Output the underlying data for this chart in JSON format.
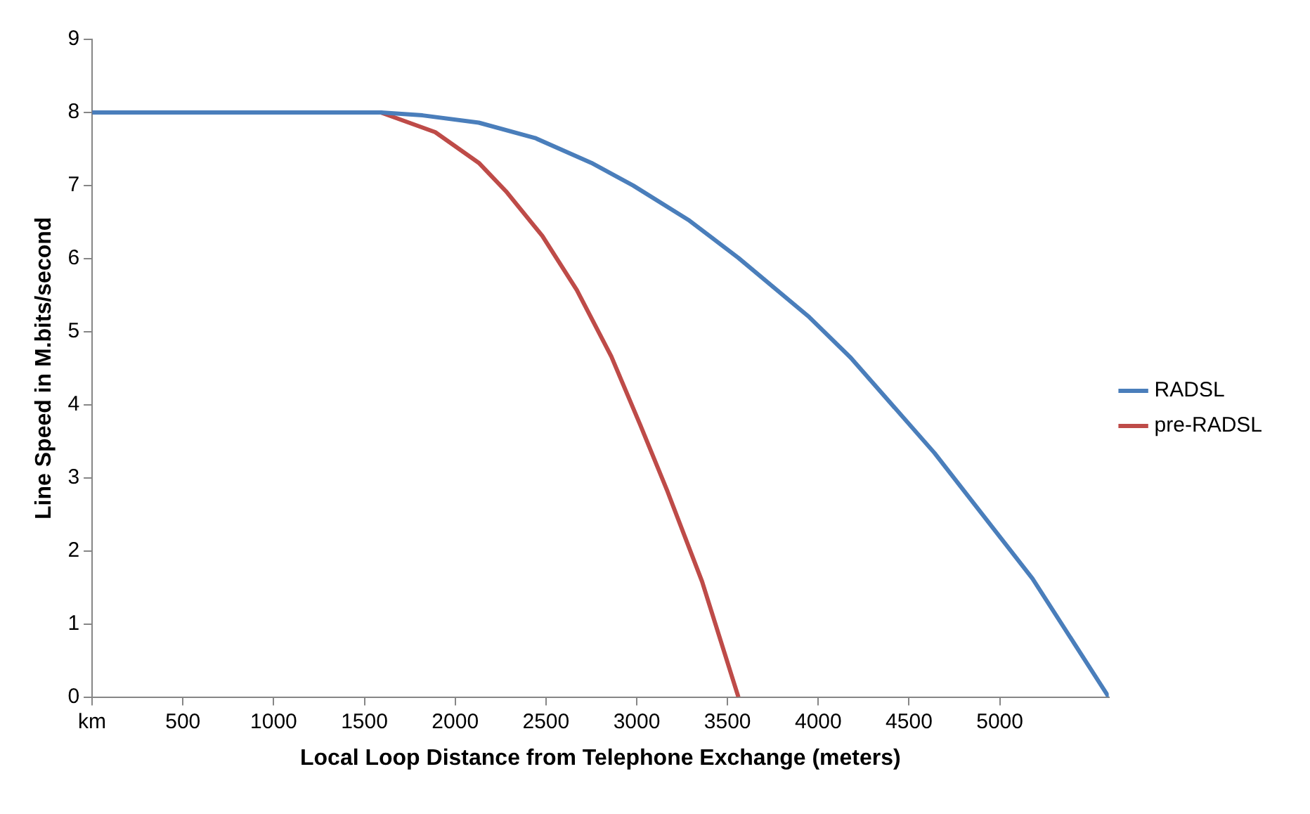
{
  "chart_data": {
    "type": "line",
    "xlabel": "Local Loop Distance from Telephone Exchange (meters)",
    "ylabel": "Line Speed in M.bits/second",
    "xlim": [
      0,
      5600
    ],
    "xticks": [
      {
        "value": 0,
        "label": "km"
      },
      500,
      1000,
      1500,
      2000,
      2500,
      3000,
      3500,
      4000,
      4500,
      5000
    ],
    "ylim": [
      0,
      9
    ],
    "yticks": [
      0,
      1,
      2,
      3,
      4,
      5,
      6,
      7,
      8,
      9
    ],
    "grid": false,
    "legend": "right",
    "marker": "none",
    "line_style": "solid",
    "series": [
      {
        "name": "RADSL",
        "color": "#4a7ebb",
        "x": [
          0,
          1590,
          1820,
          2130,
          2440,
          2750,
          2980,
          3290,
          3560,
          3950,
          4180,
          4640,
          5180,
          5600
        ],
        "values": [
          8,
          8,
          7.96,
          7.86,
          7.65,
          7.31,
          7.0,
          6.52,
          6.01,
          5.2,
          4.64,
          3.34,
          1.62,
          0
        ]
      },
      {
        "name": "pre-RADSL",
        "color": "#be4b48",
        "x": [
          0,
          1590,
          1890,
          2130,
          2280,
          2480,
          2670,
          2860,
          3020,
          3170,
          3360,
          3560
        ],
        "values": [
          8,
          8,
          7.73,
          7.31,
          6.92,
          6.31,
          5.57,
          4.66,
          3.72,
          2.81,
          1.58,
          0
        ]
      }
    ]
  }
}
